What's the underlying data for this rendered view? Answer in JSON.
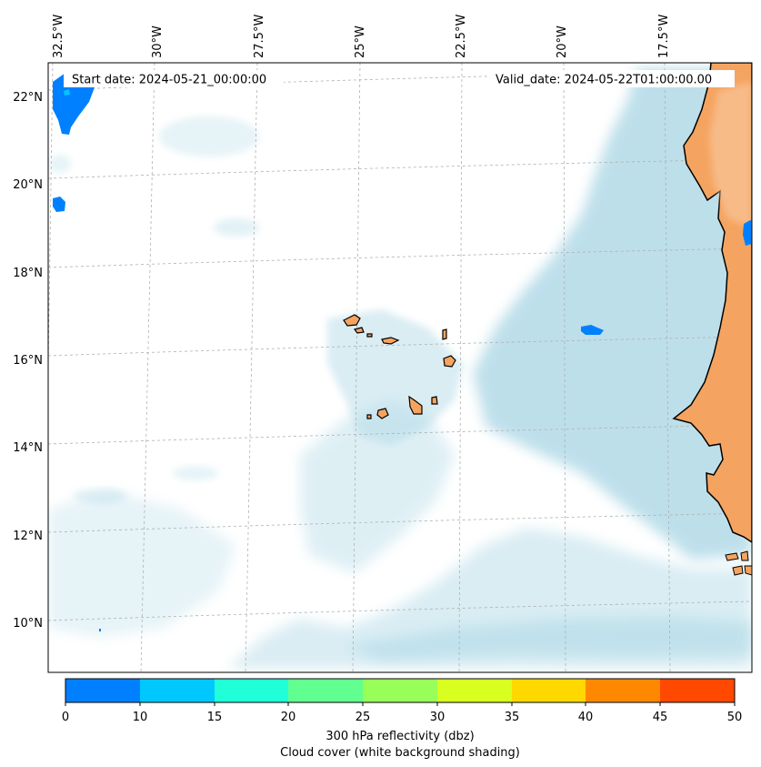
{
  "header": {
    "start_date": "Start date: 2024-05-21_00:00:00",
    "valid_date": "Valid_date: 2024-05-22T01:00:00.00"
  },
  "map": {
    "lon_labels": [
      "32.5°W",
      "30°W",
      "27.5°W",
      "25°W",
      "22.5°W",
      "20°W",
      "17.5°W"
    ],
    "lat_labels": [
      "22°N",
      "20°N",
      "18°N",
      "16°N",
      "14°N",
      "12°N",
      "10°N"
    ],
    "colors": {
      "land": "#f4a460",
      "cloud": "#add8e6",
      "coast": "#000000",
      "grid": "#b0b0b0"
    }
  },
  "colorbar": {
    "ticks": [
      "0",
      "10",
      "15",
      "20",
      "25",
      "30",
      "35",
      "40",
      "45",
      "50"
    ],
    "colors": [
      "#0080ff",
      "#00c8ff",
      "#20ffd8",
      "#60ff90",
      "#98ff58",
      "#d8ff20",
      "#ffd800",
      "#ff8800",
      "#ff4800"
    ],
    "label_line1": "300 hPa reflectivity (dbz)",
    "label_line2": "Cloud cover (white background shading)"
  }
}
